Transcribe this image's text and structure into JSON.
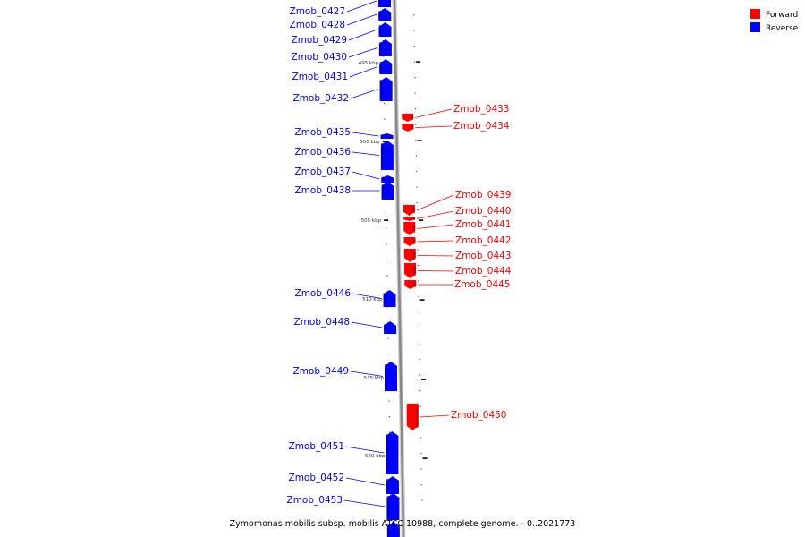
{
  "legend": {
    "items": [
      {
        "label": "Forward",
        "color": "#ff0000"
      },
      {
        "label": "Reverse",
        "color": "#0000ff"
      }
    ]
  },
  "caption": "Zymomonas mobilis subsp. mobilis ATCC 10988, complete genome. - 0..2021773",
  "colors": {
    "forward": "#ff0000",
    "reverse": "#0000ff",
    "backbone": "#888888"
  },
  "scale": {
    "unit": "kbp",
    "tick_labels": [
      "495 kbp",
      "500 kbp",
      "505 kbp",
      "510 kbp",
      "515 kbp",
      "520 kbp"
    ]
  },
  "genes": [
    {
      "name": "Zmob_0427",
      "strand": "reverse"
    },
    {
      "name": "Zmob_0428",
      "strand": "reverse"
    },
    {
      "name": "Zmob_0429",
      "strand": "reverse"
    },
    {
      "name": "Zmob_0430",
      "strand": "reverse"
    },
    {
      "name": "Zmob_0431",
      "strand": "reverse"
    },
    {
      "name": "Zmob_0432",
      "strand": "reverse"
    },
    {
      "name": "Zmob_0433",
      "strand": "forward"
    },
    {
      "name": "Zmob_0434",
      "strand": "forward"
    },
    {
      "name": "Zmob_0435",
      "strand": "reverse"
    },
    {
      "name": "Zmob_0436",
      "strand": "reverse"
    },
    {
      "name": "Zmob_0437",
      "strand": "reverse"
    },
    {
      "name": "Zmob_0438",
      "strand": "reverse"
    },
    {
      "name": "Zmob_0439",
      "strand": "forward"
    },
    {
      "name": "Zmob_0440",
      "strand": "forward"
    },
    {
      "name": "Zmob_0441",
      "strand": "forward"
    },
    {
      "name": "Zmob_0442",
      "strand": "forward"
    },
    {
      "name": "Zmob_0443",
      "strand": "forward"
    },
    {
      "name": "Zmob_0444",
      "strand": "forward"
    },
    {
      "name": "Zmob_0445",
      "strand": "forward"
    },
    {
      "name": "Zmob_0446",
      "strand": "reverse"
    },
    {
      "name": "Zmob_0448",
      "strand": "reverse"
    },
    {
      "name": "Zmob_0449",
      "strand": "reverse"
    },
    {
      "name": "Zmob_0450",
      "strand": "forward"
    },
    {
      "name": "Zmob_0451",
      "strand": "reverse"
    },
    {
      "name": "Zmob_0452",
      "strand": "reverse"
    },
    {
      "name": "Zmob_0453",
      "strand": "reverse"
    }
  ]
}
